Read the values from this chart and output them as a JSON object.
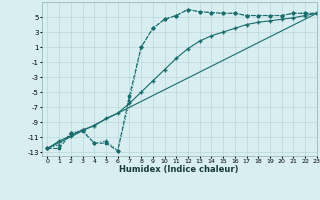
{
  "title": "",
  "xlabel": "Humidex (Indice chaleur)",
  "bg_color": "#d8eef0",
  "grid_color": "#b8d8dc",
  "line_color": "#1a6b6b",
  "xlim": [
    -0.5,
    23
  ],
  "ylim": [
    -13.5,
    7
  ],
  "yticks": [
    -13,
    -11,
    -9,
    -7,
    -5,
    -3,
    -1,
    1,
    3,
    5
  ],
  "xticks": [
    0,
    1,
    2,
    3,
    4,
    5,
    6,
    7,
    8,
    9,
    10,
    11,
    12,
    13,
    14,
    15,
    16,
    17,
    18,
    19,
    20,
    21,
    22,
    23
  ],
  "curve1_x": [
    0,
    1,
    2,
    3,
    4,
    5,
    6,
    7,
    8,
    9,
    10,
    11,
    12,
    13,
    14,
    15,
    16,
    17,
    18,
    19,
    20,
    21,
    22,
    23
  ],
  "curve1_y": [
    -12.5,
    -12.5,
    -10.5,
    -10.2,
    -11.8,
    -11.8,
    -12.8,
    -5.5,
    1.0,
    3.5,
    4.7,
    5.2,
    6.0,
    5.7,
    5.6,
    5.5,
    5.5,
    5.2,
    5.2,
    5.2,
    5.2,
    5.5,
    5.5,
    5.5
  ],
  "curve2_x": [
    0,
    1,
    2,
    3,
    4,
    5,
    6,
    7,
    8,
    9,
    10,
    11,
    12,
    13,
    14,
    15,
    16,
    17,
    18,
    19,
    20,
    21,
    22,
    23
  ],
  "curve2_y": [
    -12.5,
    -12.0,
    -10.5,
    -10.0,
    -11.8,
    -11.5,
    -12.8,
    -6.2,
    1.0,
    3.5,
    4.7,
    5.2,
    6.0,
    5.7,
    5.6,
    5.5,
    5.5,
    5.2,
    5.2,
    5.2,
    5.2,
    5.5,
    5.5,
    5.5
  ],
  "curve3_x": [
    0,
    1,
    2,
    3,
    4,
    5,
    6,
    7,
    8,
    9,
    10,
    11,
    12,
    13,
    14,
    15,
    16,
    17,
    18,
    19,
    20,
    21,
    22,
    23
  ],
  "curve3_y": [
    -12.5,
    -11.5,
    -10.8,
    -10.0,
    -9.5,
    -8.5,
    -7.8,
    -6.5,
    -5.0,
    -3.5,
    -2.0,
    -0.5,
    0.8,
    1.8,
    2.5,
    3.0,
    3.5,
    4.0,
    4.3,
    4.5,
    4.7,
    4.9,
    5.2,
    5.5
  ],
  "curve4_x": [
    0,
    23
  ],
  "curve4_y": [
    -12.5,
    5.5
  ],
  "markersize": 2.5,
  "linewidth": 0.8
}
